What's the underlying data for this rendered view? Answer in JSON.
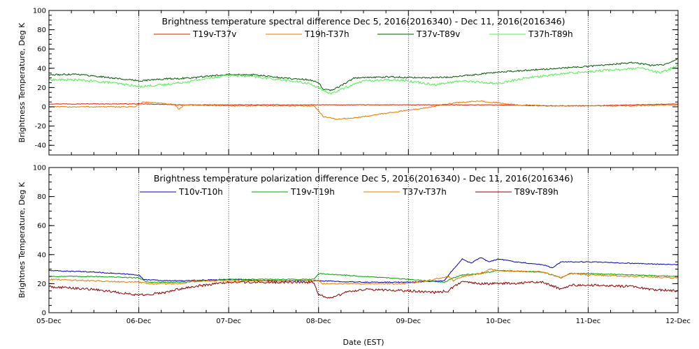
{
  "chart_data": [
    {
      "type": "line",
      "title": "Brightness temperature spectral difference    Dec  5, 2016(2016340) - Dec 11, 2016(2016346)",
      "ylabel": "Brightness Temperature, Deg K",
      "xlabel": "",
      "ylim": [
        -50,
        100
      ],
      "yticks": [
        -40,
        -20,
        0,
        20,
        40,
        60,
        80,
        100
      ],
      "xlim": [
        0,
        7
      ],
      "x_tick_labels": [
        "05-Dec",
        "06-Dec",
        "07-Dec",
        "08-Dec",
        "09-Dec",
        "10-Dec",
        "11-Dec",
        "12-Dec"
      ],
      "grid": "vertical dotted at day boundaries",
      "legend": "top, horizontal",
      "series": [
        {
          "name": "T19v-T37v",
          "color": "#cc2200",
          "noise": 0.3,
          "points": [
            [
              0,
              3
            ],
            [
              0.5,
              3
            ],
            [
              1.0,
              3
            ],
            [
              1.5,
              2
            ],
            [
              2.0,
              2
            ],
            [
              2.5,
              2
            ],
            [
              3.0,
              2
            ],
            [
              3.5,
              2
            ],
            [
              4.0,
              2
            ],
            [
              4.5,
              2
            ],
            [
              5.0,
              2
            ],
            [
              5.5,
              1
            ],
            [
              6.0,
              1
            ],
            [
              6.5,
              2
            ],
            [
              7.0,
              3
            ]
          ]
        },
        {
          "name": "T19h-T37h",
          "color": "#e87800",
          "noise": 0.6,
          "points": [
            [
              0,
              0
            ],
            [
              0.5,
              0
            ],
            [
              0.95,
              0
            ],
            [
              1.05,
              5
            ],
            [
              1.2,
              4
            ],
            [
              1.4,
              2
            ],
            [
              1.45,
              -3
            ],
            [
              1.5,
              2
            ],
            [
              2.0,
              1
            ],
            [
              2.5,
              1
            ],
            [
              2.95,
              1
            ],
            [
              3.0,
              -4
            ],
            [
              3.05,
              -10
            ],
            [
              3.2,
              -13
            ],
            [
              3.45,
              -11
            ],
            [
              3.8,
              -6
            ],
            [
              4.2,
              -1
            ],
            [
              4.5,
              4
            ],
            [
              4.8,
              6
            ],
            [
              5.0,
              4
            ],
            [
              5.2,
              2
            ],
            [
              5.6,
              1
            ],
            [
              6.0,
              1
            ],
            [
              6.5,
              1
            ],
            [
              7.0,
              2
            ]
          ]
        },
        {
          "name": "T37v-T89v",
          "color": "#005500",
          "noise": 0.8,
          "points": [
            [
              0,
              33
            ],
            [
              0.3,
              34
            ],
            [
              0.7,
              30
            ],
            [
              1.0,
              27
            ],
            [
              1.3,
              29
            ],
            [
              1.6,
              30
            ],
            [
              2.0,
              34
            ],
            [
              2.3,
              33
            ],
            [
              2.6,
              30
            ],
            [
              2.9,
              28
            ],
            [
              3.0,
              25
            ],
            [
              3.05,
              18
            ],
            [
              3.15,
              17
            ],
            [
              3.25,
              22
            ],
            [
              3.4,
              30
            ],
            [
              3.8,
              31
            ],
            [
              4.2,
              30
            ],
            [
              4.5,
              31
            ],
            [
              5.0,
              36
            ],
            [
              5.5,
              39
            ],
            [
              6.0,
              42
            ],
            [
              6.5,
              46
            ],
            [
              6.7,
              43
            ],
            [
              6.85,
              44
            ],
            [
              7.0,
              50
            ]
          ]
        },
        {
          "name": "T37h-T89h",
          "color": "#55ee55",
          "noise": 1.2,
          "points": [
            [
              0,
              28
            ],
            [
              0.3,
              28
            ],
            [
              0.7,
              25
            ],
            [
              1.0,
              21
            ],
            [
              1.3,
              23
            ],
            [
              1.6,
              27
            ],
            [
              2.0,
              33
            ],
            [
              2.3,
              31
            ],
            [
              2.6,
              28
            ],
            [
              2.9,
              24
            ],
            [
              3.0,
              20
            ],
            [
              3.05,
              16
            ],
            [
              3.15,
              14
            ],
            [
              3.3,
              20
            ],
            [
              3.5,
              27
            ],
            [
              3.9,
              28
            ],
            [
              4.3,
              23
            ],
            [
              4.6,
              27
            ],
            [
              5.0,
              24
            ],
            [
              5.3,
              30
            ],
            [
              5.8,
              35
            ],
            [
              6.2,
              38
            ],
            [
              6.6,
              40
            ],
            [
              6.8,
              35
            ],
            [
              7.0,
              43
            ]
          ]
        }
      ]
    },
    {
      "type": "line",
      "title": "Brightness temperature polarization difference    Dec  5, 2016(2016340) - Dec 11, 2016(2016346)",
      "ylabel": "Brightnes Temperature, Deg K",
      "xlabel": "Date (EST)",
      "ylim": [
        0,
        100
      ],
      "yticks": [
        0,
        20,
        40,
        60,
        80,
        100
      ],
      "xlim": [
        0,
        7
      ],
      "x_tick_labels": [
        "05-Dec",
        "06-Dec",
        "07-Dec",
        "08-Dec",
        "09-Dec",
        "10-Dec",
        "11-Dec",
        "12-Dec"
      ],
      "grid": "vertical dotted at day boundaries",
      "legend": "top, horizontal",
      "series": [
        {
          "name": "T10v-T10h",
          "color": "#0000aa",
          "noise": 0.3,
          "points": [
            [
              0,
              29
            ],
            [
              0.5,
              28
            ],
            [
              1.0,
              26
            ],
            [
              1.05,
              23
            ],
            [
              1.3,
              22
            ],
            [
              1.5,
              22
            ],
            [
              2.0,
              23
            ],
            [
              2.5,
              22
            ],
            [
              3.0,
              22
            ],
            [
              3.5,
              21
            ],
            [
              4.0,
              21
            ],
            [
              4.4,
              22
            ],
            [
              4.5,
              30
            ],
            [
              4.6,
              37
            ],
            [
              4.7,
              34
            ],
            [
              4.8,
              38
            ],
            [
              4.9,
              35
            ],
            [
              5.0,
              37
            ],
            [
              5.2,
              35
            ],
            [
              5.5,
              33
            ],
            [
              5.6,
              31
            ],
            [
              5.7,
              35
            ],
            [
              6.0,
              35
            ],
            [
              6.5,
              34
            ],
            [
              7.0,
              33
            ]
          ]
        },
        {
          "name": "T19v-T19h",
          "color": "#00a000",
          "noise": 0.3,
          "points": [
            [
              0,
              25
            ],
            [
              0.5,
              25
            ],
            [
              1.0,
              24
            ],
            [
              1.1,
              21
            ],
            [
              1.5,
              21
            ],
            [
              2.0,
              23
            ],
            [
              2.5,
              23
            ],
            [
              2.95,
              23
            ],
            [
              3.0,
              27
            ],
            [
              3.5,
              25
            ],
            [
              4.0,
              23
            ],
            [
              4.4,
              21
            ],
            [
              4.5,
              24
            ],
            [
              4.6,
              26
            ],
            [
              4.8,
              27
            ],
            [
              5.0,
              29
            ],
            [
              5.5,
              28
            ],
            [
              5.7,
              24
            ],
            [
              5.8,
              27
            ],
            [
              6.0,
              27
            ],
            [
              6.5,
              26
            ],
            [
              7.0,
              25
            ]
          ]
        },
        {
          "name": "T37v-T37h",
          "color": "#e87800",
          "noise": 0.5,
          "points": [
            [
              0,
              23
            ],
            [
              0.5,
              22
            ],
            [
              1.0,
              21
            ],
            [
              1.1,
              20
            ],
            [
              1.5,
              20
            ],
            [
              1.6,
              22
            ],
            [
              2.0,
              22
            ],
            [
              2.5,
              22
            ],
            [
              3.0,
              22
            ],
            [
              3.05,
              20
            ],
            [
              3.5,
              20
            ],
            [
              4.0,
              20
            ],
            [
              4.3,
              23
            ],
            [
              4.45,
              25
            ],
            [
              4.5,
              22
            ],
            [
              4.6,
              25
            ],
            [
              4.8,
              27
            ],
            [
              4.9,
              30
            ],
            [
              5.0,
              29
            ],
            [
              5.5,
              28
            ],
            [
              5.7,
              24
            ],
            [
              5.8,
              27
            ],
            [
              6.0,
              26
            ],
            [
              6.5,
              25
            ],
            [
              7.0,
              24
            ]
          ]
        },
        {
          "name": "T89v-T89h",
          "color": "#880000",
          "noise": 0.8,
          "points": [
            [
              0,
              18
            ],
            [
              0.5,
              16
            ],
            [
              0.9,
              13
            ],
            [
              1.0,
              12
            ],
            [
              1.3,
              14
            ],
            [
              1.5,
              17
            ],
            [
              1.6,
              18
            ],
            [
              2.0,
              21
            ],
            [
              2.5,
              21
            ],
            [
              2.95,
              21
            ],
            [
              3.0,
              12
            ],
            [
              3.15,
              10
            ],
            [
              3.3,
              14
            ],
            [
              3.5,
              16
            ],
            [
              4.0,
              15
            ],
            [
              4.3,
              14
            ],
            [
              4.45,
              15
            ],
            [
              4.5,
              18
            ],
            [
              4.6,
              21
            ],
            [
              4.8,
              20
            ],
            [
              5.0,
              20
            ],
            [
              5.5,
              21
            ],
            [
              5.7,
              16
            ],
            [
              5.8,
              19
            ],
            [
              6.0,
              19
            ],
            [
              6.5,
              18
            ],
            [
              6.7,
              16
            ],
            [
              7.0,
              15
            ]
          ]
        }
      ]
    }
  ]
}
